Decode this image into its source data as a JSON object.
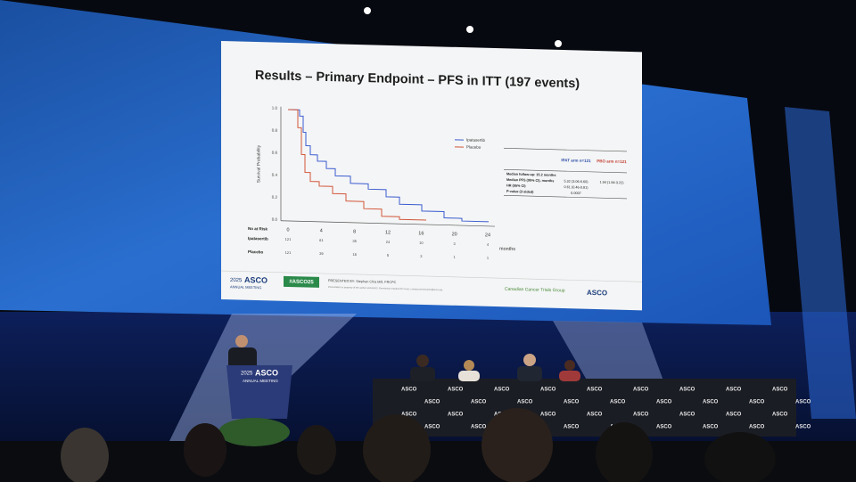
{
  "slide": {
    "title": "Results – Primary Endpoint – PFS in ITT (197 events)",
    "y_label": "Survival Probability",
    "yticks": [
      "0.0",
      "0.2",
      "0.4",
      "0.6",
      "0.8",
      "1.0"
    ],
    "xticks": [
      "0",
      "4",
      "8",
      "12",
      "16",
      "20",
      "24"
    ],
    "x_unit": "months",
    "legend": [
      "Ipatasertib",
      "Placebo"
    ],
    "at_risk": {
      "label": "No at Risk",
      "rows": [
        {
          "name": "Ipatasertib",
          "counts": [
            "121",
            "61",
            "35",
            "24",
            "10",
            "3",
            "4"
          ]
        },
        {
          "name": "Placebo",
          "counts": [
            "121",
            "39",
            "18",
            "5",
            "3",
            "1",
            "1"
          ]
        }
      ]
    },
    "stats": {
      "header": [
        "IPAT arm n=121",
        "PBO arm n=121"
      ],
      "rows": [
        [
          "Median follow-up: 15.2 months",
          "",
          ""
        ],
        [
          "Median PFS (95% CI), months",
          "5.32 (3.06-6.60)",
          "1.94 (1.84-3.22)"
        ],
        [
          "HR (95% CI)",
          "0.61 (0.46-0.81)",
          ""
        ],
        [
          "P-value (2-sided)",
          "0.0007",
          ""
        ]
      ]
    },
    "footer": {
      "meeting_year": "2025",
      "meeting_brand": "ASCO",
      "meeting_sub": "ANNUAL MEETING",
      "hashtag": "#ASCO25",
      "presenter": "PRESENTED BY: Stephan Chia MD, FRCPC",
      "notice": "Presentation is property of the author and ASCO. Permission required for reuse; contact permissions@asco.org.",
      "group": "Canadian Cancer Trials Group",
      "org": "ASCO"
    }
  },
  "stage": {
    "podium_year": "2025",
    "podium_brand": "ASCO",
    "podium_sub": "ANNUAL MEETING",
    "table_brand": "ASCO"
  }
}
